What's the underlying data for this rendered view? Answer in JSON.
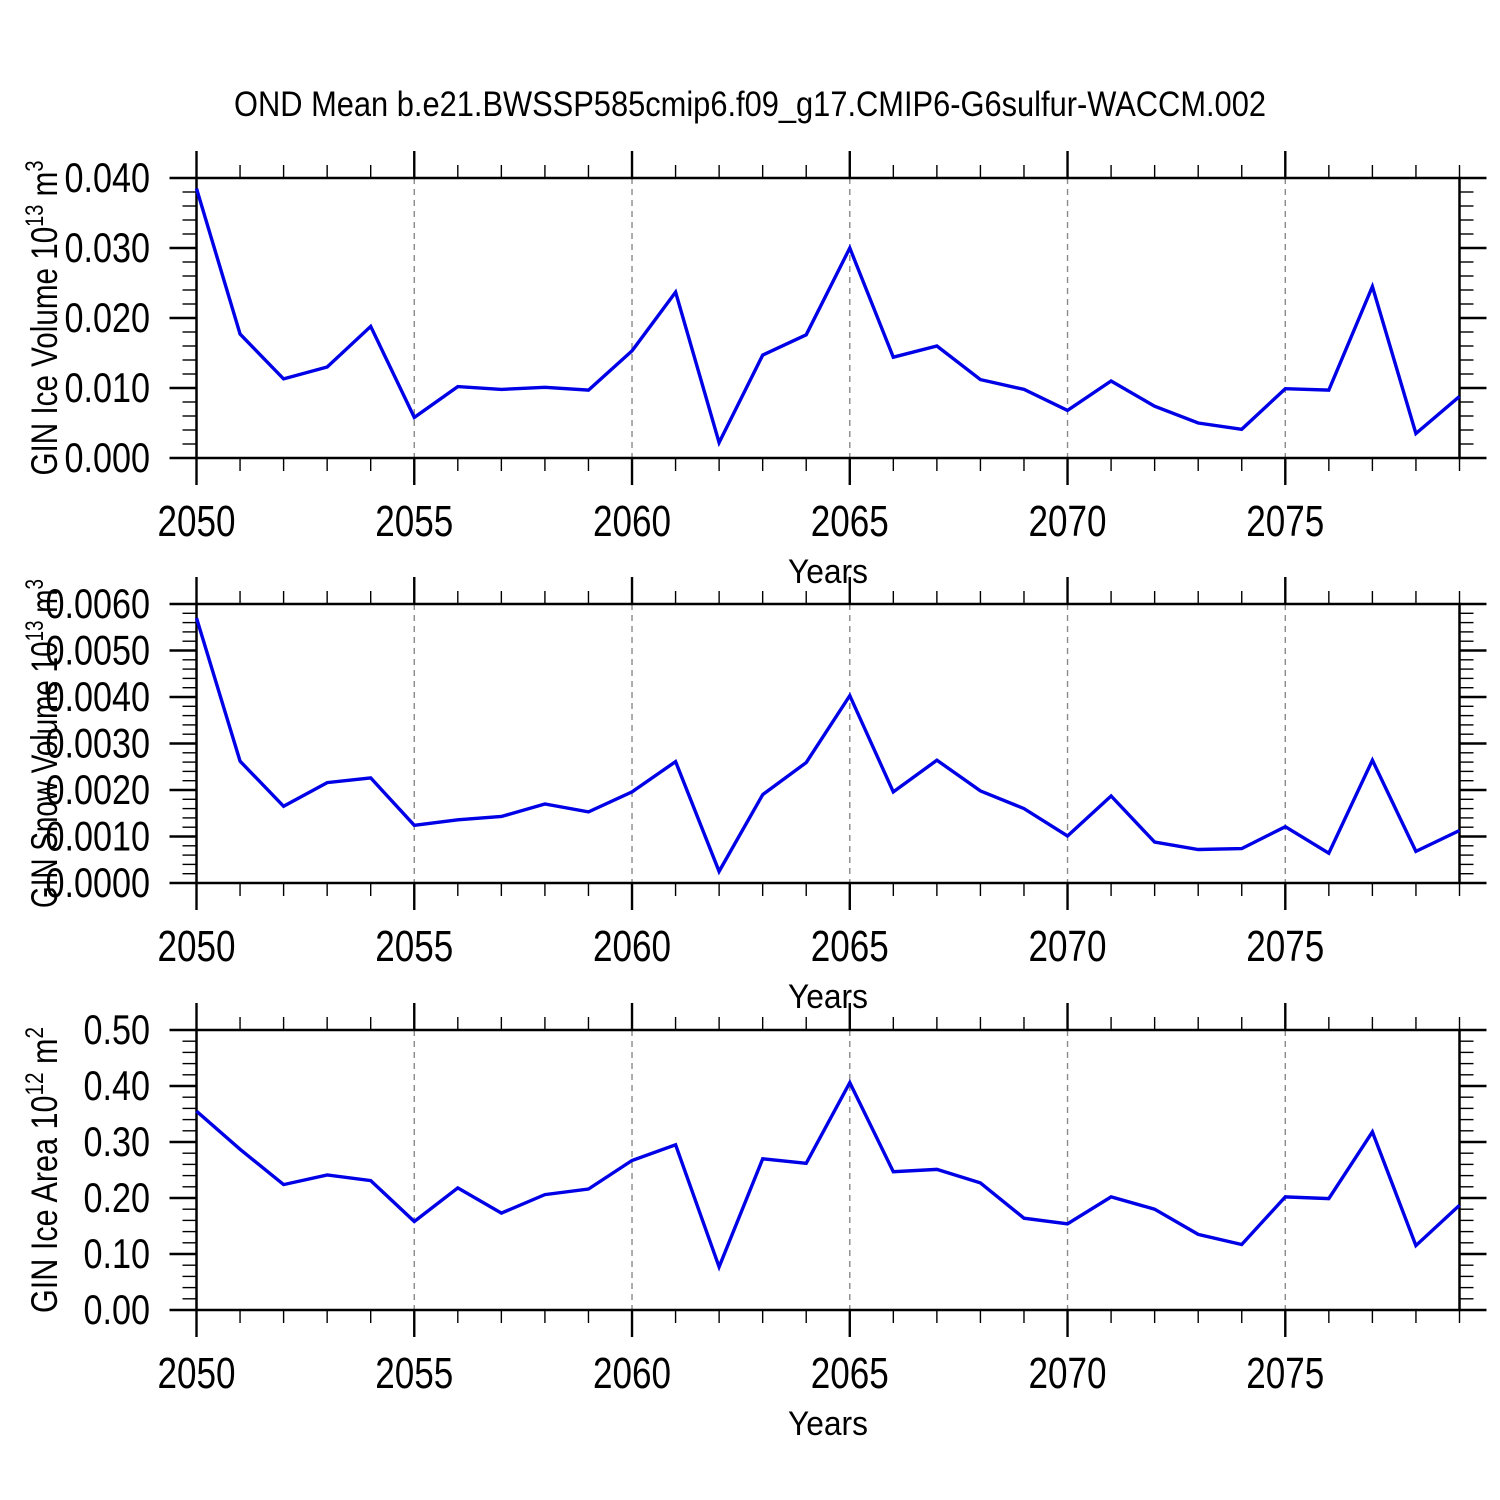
{
  "title": "OND Mean b.e21.BWSSP585cmip6.f09_g17.CMIP6-G6sulfur-WACCM.002",
  "colors": {
    "line": "#0000e6",
    "axis": "#000000",
    "grid": "#8a8a8a",
    "text": "#000000",
    "background": "#ffffff"
  },
  "years": [
    2050,
    2051,
    2052,
    2053,
    2054,
    2055,
    2056,
    2057,
    2058,
    2059,
    2060,
    2061,
    2062,
    2063,
    2064,
    2065,
    2066,
    2067,
    2068,
    2069,
    2070,
    2071,
    2072,
    2073,
    2074,
    2075,
    2076,
    2077,
    2078,
    2079
  ],
  "x_axis": {
    "label": "Years",
    "range": [
      2050,
      2079
    ],
    "tick_years": [
      2050,
      2055,
      2060,
      2065,
      2070,
      2075
    ],
    "tick_labels": [
      "2050",
      "2055",
      "2060",
      "2065",
      "2070",
      "2075"
    ],
    "grid_years": [
      2055,
      2060,
      2065,
      2070,
      2075
    ]
  },
  "chart_data": [
    {
      "type": "line",
      "name": "ice-volume",
      "ylabel": "GIN Ice Volume 10^13 m^3",
      "ylabel_parts": [
        {
          "text": "GIN Ice Volume 10",
          "sup": false
        },
        {
          "text": "13",
          "sup": true
        },
        {
          "text": " m",
          "sup": false
        },
        {
          "text": "3",
          "sup": true
        }
      ],
      "xlabel": "Years",
      "ylim": [
        0,
        0.04
      ],
      "ytick_values": [
        0.0,
        0.01,
        0.02,
        0.03,
        0.04
      ],
      "ytick_labels": [
        "0.000",
        "0.010",
        "0.020",
        "0.030",
        "0.040"
      ],
      "yminor_step": 0.002,
      "grid": "vertical-dashed",
      "values": [
        0.0385,
        0.0177,
        0.0113,
        0.013,
        0.0188,
        0.0058,
        0.0102,
        0.0098,
        0.0101,
        0.0097,
        0.0153,
        0.0237,
        0.0022,
        0.0147,
        0.0176,
        0.03,
        0.0144,
        0.016,
        0.0112,
        0.0098,
        0.0068,
        0.011,
        0.0074,
        0.005,
        0.0041,
        0.0099,
        0.0097,
        0.0245,
        0.0035,
        0.0088
      ]
    },
    {
      "type": "line",
      "name": "snow-volume",
      "ylabel": "GIN Snow Volume 10^13 m^3",
      "ylabel_parts": [
        {
          "text": "GIN Snow Volume 10",
          "sup": false
        },
        {
          "text": "13",
          "sup": true
        },
        {
          "text": " m",
          "sup": false
        },
        {
          "text": "3",
          "sup": true
        }
      ],
      "xlabel": "Years",
      "ylim": [
        0,
        0.006
      ],
      "ytick_values": [
        0.0,
        0.001,
        0.002,
        0.003,
        0.004,
        0.005,
        0.006
      ],
      "ytick_labels": [
        "0.0000",
        "0.0010",
        "0.0020",
        "0.0030",
        "0.0040",
        "0.0050",
        "0.0060"
      ],
      "yminor_step": 0.0002,
      "grid": "vertical-dashed",
      "values": [
        0.0057,
        0.00262,
        0.00165,
        0.00216,
        0.00226,
        0.00124,
        0.00136,
        0.00143,
        0.0017,
        0.00153,
        0.00196,
        0.00261,
        0.00025,
        0.0019,
        0.00259,
        0.00403,
        0.00196,
        0.00264,
        0.00198,
        0.0016,
        0.00101,
        0.00187,
        0.00088,
        0.00072,
        0.00074,
        0.00121,
        0.00064,
        0.00264,
        0.00068,
        0.00113
      ]
    },
    {
      "type": "line",
      "name": "ice-area",
      "ylabel": "GIN Ice Area 10^12 m^2",
      "ylabel_parts": [
        {
          "text": "GIN Ice Area 10",
          "sup": false
        },
        {
          "text": "12",
          "sup": true
        },
        {
          "text": " m",
          "sup": false
        },
        {
          "text": "2",
          "sup": true
        }
      ],
      "xlabel": "Years",
      "ylim": [
        0,
        0.5
      ],
      "ytick_values": [
        0.0,
        0.1,
        0.2,
        0.3,
        0.4,
        0.5
      ],
      "ytick_labels": [
        "0.00",
        "0.10",
        "0.20",
        "0.30",
        "0.40",
        "0.50"
      ],
      "yminor_step": 0.02,
      "grid": "vertical-dashed",
      "values": [
        0.355,
        0.287,
        0.224,
        0.241,
        0.231,
        0.158,
        0.218,
        0.173,
        0.206,
        0.216,
        0.267,
        0.295,
        0.077,
        0.27,
        0.262,
        0.406,
        0.247,
        0.251,
        0.227,
        0.164,
        0.154,
        0.202,
        0.18,
        0.135,
        0.117,
        0.202,
        0.199,
        0.318,
        0.115,
        0.187
      ]
    }
  ]
}
